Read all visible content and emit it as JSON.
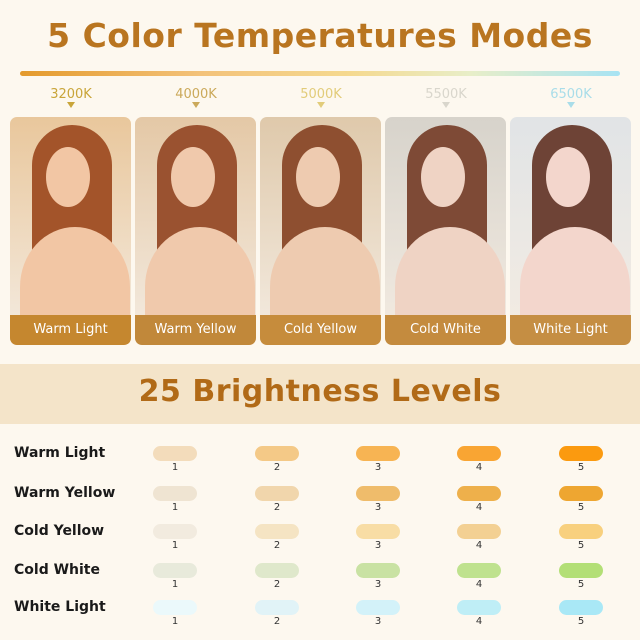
{
  "header": {
    "title": "5 Color Temperatures Modes"
  },
  "modes": [
    {
      "kelvin": "3200K",
      "label": "Warm Light",
      "kelvin_color": "#c9a53a",
      "photo_tint": "#e9c79c",
      "skin": "#f2c6a4",
      "hair": "#a3542a",
      "label_bg": "#c5872f"
    },
    {
      "kelvin": "4000K",
      "label": "Warm Yellow",
      "kelvin_color": "#cba95a",
      "photo_tint": "#e4c8a6",
      "skin": "#f0c9ac",
      "hair": "#9a5230",
      "label_bg": "#c1883a"
    },
    {
      "kelvin": "5000K",
      "label": "Cold Yellow",
      "kelvin_color": "#e2cc7a",
      "photo_tint": "#dfc9ab",
      "skin": "#eecbb0",
      "hair": "#8e4f30",
      "label_bg": "#c68c3c"
    },
    {
      "kelvin": "5500K",
      "label": "Cold White",
      "kelvin_color": "#d9d6cc",
      "photo_tint": "#d7d3cb",
      "skin": "#efd3c4",
      "hair": "#7e4a36",
      "label_bg": "#c48b3e"
    },
    {
      "kelvin": "6500K",
      "label": "White Light",
      "kelvin_color": "#a9dde9",
      "photo_tint": "#e1e4e6",
      "skin": "#f3d6cc",
      "hair": "#6e4336",
      "label_bg": "#c58e43"
    }
  ],
  "brightness": {
    "title": "25 Brightness Levels",
    "levels": [
      "1",
      "2",
      "3",
      "4",
      "5"
    ],
    "rows": [
      {
        "label": "Warm Light",
        "colors": [
          "#f3dcbb",
          "#f4c987",
          "#f7b453",
          "#f9a533",
          "#fb9a0f"
        ]
      },
      {
        "label": "Warm Yellow",
        "colors": [
          "#efe4d2",
          "#f1d6ac",
          "#efbc6b",
          "#eeb04b",
          "#eea631"
        ]
      },
      {
        "label": "Cold Yellow",
        "colors": [
          "#f2ebdf",
          "#f5e4c3",
          "#f8dda5",
          "#f3d093",
          "#f8d07e"
        ]
      },
      {
        "label": "Cold White",
        "colors": [
          "#e8eadb",
          "#dfe8cb",
          "#c9e2a3",
          "#bfe28e",
          "#b3df76"
        ]
      },
      {
        "label": "White Light",
        "colors": [
          "#ebf9fb",
          "#e1f3f7",
          "#d3f2f9",
          "#bfeef6",
          "#a9e8f6"
        ]
      }
    ]
  }
}
